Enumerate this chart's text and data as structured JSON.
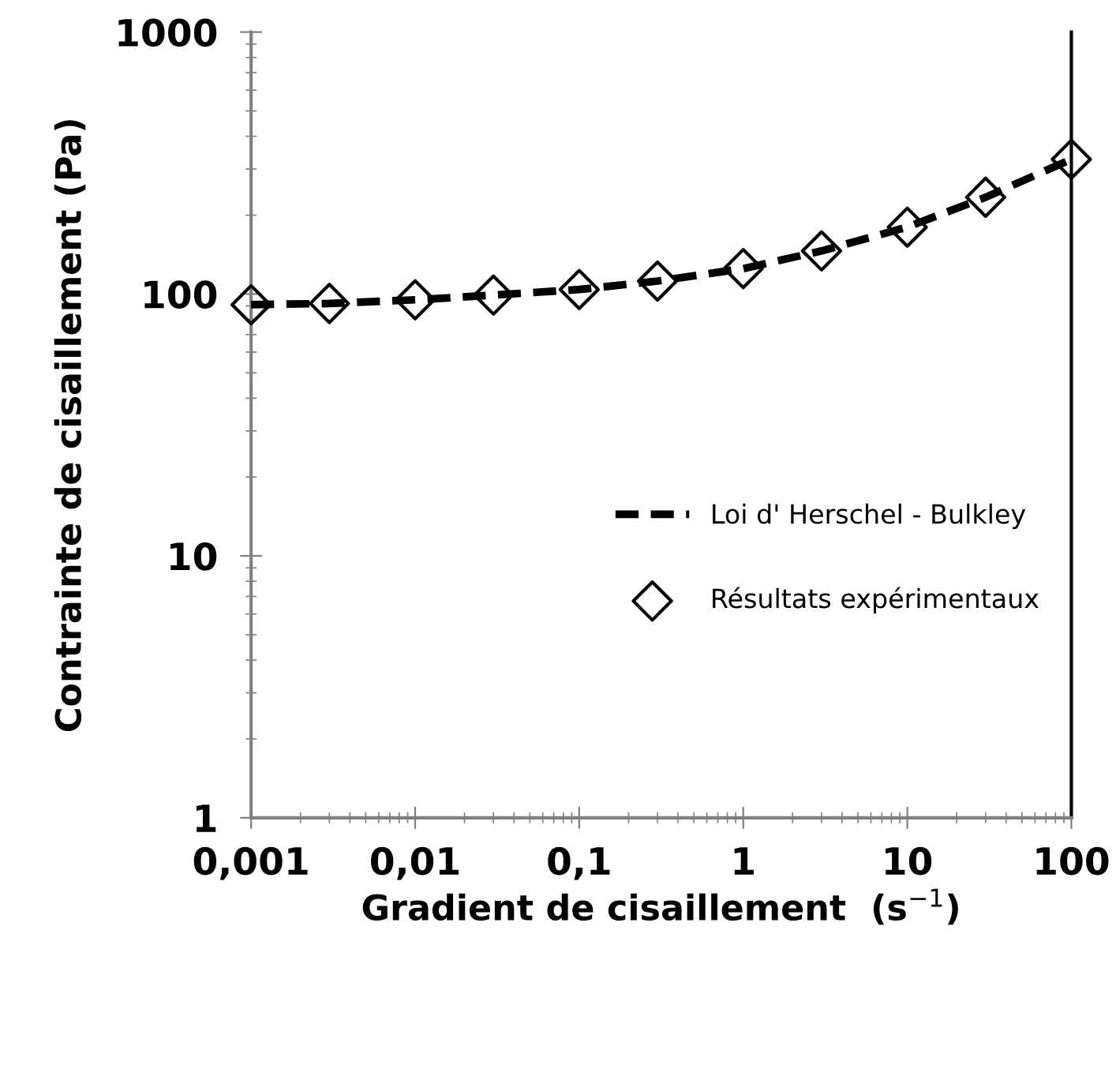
{
  "chart_data": {
    "type": "line",
    "xlabel": "Gradient de cisaillement  (s$^{−1}$)",
    "ylabel": "Contrainte de cisaillement (Pa)",
    "log": "xy",
    "xlim": [
      0.001,
      100
    ],
    "ylim": [
      1,
      1000
    ],
    "xticks": [
      {
        "value": 0.001,
        "label": "0,001"
      },
      {
        "value": 0.01,
        "label": "0,01"
      },
      {
        "value": 0.1,
        "label": "0,1"
      },
      1,
      10,
      100
    ],
    "yticks": [
      1,
      10,
      100,
      1000
    ],
    "grid": false,
    "legend": "right",
    "series": [
      {
        "name": "Loi d' Herschel - Bulkley",
        "color": "#000000",
        "line_style": "dashed",
        "marker": "none",
        "x": [
          0.001,
          0.003,
          0.01,
          0.03,
          0.1,
          0.3,
          1,
          3,
          10,
          30,
          100
        ],
        "values": [
          91,
          92,
          95,
          99,
          104,
          112,
          125,
          146,
          180,
          234,
          327
        ]
      },
      {
        "name": "Résultats expérimentaux",
        "type": "scatter",
        "color": "#000000",
        "marker": "diamond",
        "x": [
          0.001,
          0.003,
          0.01,
          0.03,
          0.1,
          0.3,
          1,
          3,
          10,
          30,
          100
        ],
        "values": [
          91,
          92,
          95,
          99,
          104,
          112,
          125,
          146,
          180,
          234,
          327
        ]
      }
    ]
  }
}
